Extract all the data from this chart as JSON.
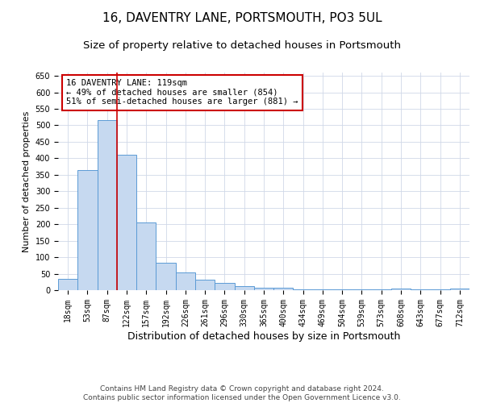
{
  "title": "16, DAVENTRY LANE, PORTSMOUTH, PO3 5UL",
  "subtitle": "Size of property relative to detached houses in Portsmouth",
  "xlabel": "Distribution of detached houses by size in Portsmouth",
  "ylabel": "Number of detached properties",
  "categories": [
    "18sqm",
    "53sqm",
    "87sqm",
    "122sqm",
    "157sqm",
    "192sqm",
    "226sqm",
    "261sqm",
    "296sqm",
    "330sqm",
    "365sqm",
    "400sqm",
    "434sqm",
    "469sqm",
    "504sqm",
    "539sqm",
    "573sqm",
    "608sqm",
    "643sqm",
    "677sqm",
    "712sqm"
  ],
  "values": [
    35,
    365,
    515,
    410,
    205,
    83,
    53,
    33,
    22,
    12,
    8,
    8,
    2,
    2,
    2,
    2,
    2,
    5,
    2,
    2,
    5
  ],
  "bar_color": "#c6d9f0",
  "bar_edge_color": "#5b9bd5",
  "vline_x_index": 2.5,
  "vline_color": "#cc0000",
  "annotation_text": "16 DAVENTRY LANE: 119sqm\n← 49% of detached houses are smaller (854)\n51% of semi-detached houses are larger (881) →",
  "annotation_box_color": "#ffffff",
  "annotation_box_edge_color": "#cc0000",
  "ylim": [
    0,
    660
  ],
  "yticks": [
    0,
    50,
    100,
    150,
    200,
    250,
    300,
    350,
    400,
    450,
    500,
    550,
    600,
    650
  ],
  "grid_color": "#d0d8e8",
  "background_color": "#ffffff",
  "footnote": "Contains HM Land Registry data © Crown copyright and database right 2024.\nContains public sector information licensed under the Open Government Licence v3.0.",
  "title_fontsize": 11,
  "subtitle_fontsize": 9.5,
  "xlabel_fontsize": 9,
  "ylabel_fontsize": 8,
  "tick_fontsize": 7,
  "annotation_fontsize": 7.5,
  "footnote_fontsize": 6.5
}
